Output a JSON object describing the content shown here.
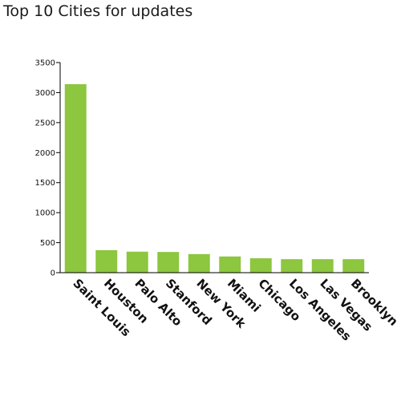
{
  "chart_data": {
    "type": "bar",
    "title": "Top 10 Cities for updates",
    "xlabel": "",
    "ylabel": "",
    "categories": [
      "Saint Louis",
      "Houston",
      "Palo Alto",
      "Stanford",
      "New York",
      "Miami",
      "Chicago",
      "Los Angeles",
      "Las Vegas",
      "Brooklyn"
    ],
    "values": [
      3140,
      375,
      350,
      345,
      310,
      270,
      240,
      225,
      225,
      225
    ],
    "ylim": [
      0,
      3500
    ],
    "yticks": [
      0,
      500,
      1000,
      1500,
      2000,
      2500,
      3000,
      3500
    ],
    "bar_color": "#8dc63f",
    "axis_color": "#000000",
    "grid": false,
    "legend": "none"
  }
}
